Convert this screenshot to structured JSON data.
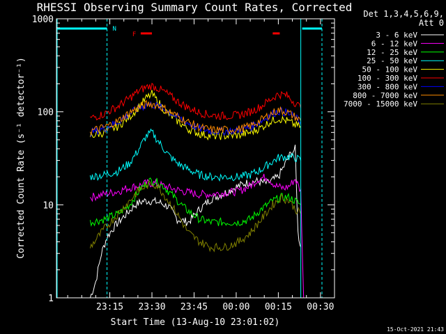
{
  "chart_data": {
    "type": "line",
    "title": "RHESSI Observing Summary Count Rates, Corrected",
    "xlabel": "Start Time (13-Aug-10 23:01:02)",
    "ylabel": "Corrected Count Rate (s⁻¹ detector⁻¹)",
    "y_scale": "log",
    "ylim": [
      1,
      1000
    ],
    "y_ticks": [
      {
        "v": 1,
        "label": "1"
      },
      {
        "v": 10,
        "label": "10"
      },
      {
        "v": 100,
        "label": "100"
      },
      {
        "v": 1000,
        "label": "1000"
      }
    ],
    "xlim_minutes_after_start": [
      -5,
      94
    ],
    "x_ticks": [
      {
        "m": 14,
        "label": "23:15"
      },
      {
        "m": 29,
        "label": "23:30"
      },
      {
        "m": 44,
        "label": "23:45"
      },
      {
        "m": 59,
        "label": "00:00"
      },
      {
        "m": 74,
        "label": "00:15"
      },
      {
        "m": 89,
        "label": "00:30"
      }
    ],
    "legend_header": [
      "Det 1,3,4,5,6,9,",
      "Att 0"
    ],
    "legend_position": "right",
    "series": [
      {
        "name": "3 - 6 keV",
        "color": "#ffffff",
        "x": [
          7,
          9,
          11,
          13,
          15,
          17,
          20,
          23,
          26,
          29,
          32,
          35,
          38,
          42,
          46,
          50,
          54,
          58,
          62,
          66,
          70,
          74,
          76,
          78,
          80,
          81,
          82
        ],
        "values": [
          1,
          1.5,
          3,
          4.5,
          5.5,
          6.5,
          8,
          10,
          11,
          11,
          10.5,
          9.5,
          7,
          6.5,
          9,
          11.5,
          13,
          15,
          17,
          18,
          17,
          20,
          26,
          34,
          40,
          5,
          3.5
        ]
      },
      {
        "name": "6 - 12 keV",
        "color": "#ff00ff",
        "x": [
          7,
          12,
          17,
          20,
          24,
          27,
          30,
          33,
          36,
          40,
          45,
          50,
          55,
          60,
          64,
          67,
          70,
          73,
          76,
          78,
          80,
          82,
          83
        ],
        "values": [
          12,
          13,
          14,
          15,
          16,
          17,
          17,
          16,
          15,
          14,
          13,
          13,
          13.5,
          14,
          16,
          19,
          20,
          16,
          15,
          16,
          19,
          14,
          1
        ]
      },
      {
        "name": "12 - 25 keV",
        "color": "#00ff00",
        "x": [
          7,
          12,
          17,
          21,
          25,
          28,
          30,
          33,
          37,
          41,
          46,
          50,
          55,
          60,
          64,
          68,
          72,
          75,
          78,
          80,
          82
        ],
        "values": [
          6.5,
          7,
          8,
          10,
          15,
          18,
          18,
          16,
          12,
          9,
          7,
          6.5,
          6.5,
          6.5,
          7,
          9,
          11,
          12,
          12,
          11,
          10
        ]
      },
      {
        "name": "25 - 50 keV",
        "color": "#00ffff",
        "x": [
          7,
          12,
          17,
          21,
          24,
          27,
          29,
          32,
          35,
          38,
          42,
          46,
          50,
          55,
          60,
          64,
          68,
          71,
          74,
          77,
          80,
          82
        ],
        "values": [
          20,
          21,
          23,
          28,
          38,
          55,
          60,
          45,
          34,
          28,
          24,
          21,
          20,
          20,
          20,
          21,
          24,
          28,
          32,
          33,
          32,
          30
        ]
      },
      {
        "name": "50 - 100 keV",
        "color": "#ffff00",
        "x": [
          7,
          12,
          17,
          21,
          24,
          27,
          29,
          31,
          34,
          38,
          42,
          46,
          50,
          55,
          60,
          64,
          68,
          71,
          74,
          77,
          80,
          82
        ],
        "values": [
          55,
          60,
          70,
          88,
          110,
          140,
          155,
          130,
          100,
          80,
          65,
          58,
          55,
          55,
          56,
          60,
          68,
          78,
          85,
          80,
          72,
          70
        ]
      },
      {
        "name": "100 - 300 keV",
        "color": "#ff0000",
        "x": [
          7,
          12,
          17,
          21,
          24,
          27,
          29,
          31,
          34,
          38,
          42,
          46,
          50,
          55,
          60,
          64,
          68,
          71,
          74,
          77,
          80,
          82
        ],
        "values": [
          85,
          95,
          115,
          140,
          165,
          185,
          190,
          180,
          160,
          130,
          110,
          98,
          92,
          90,
          92,
          100,
          115,
          135,
          155,
          150,
          125,
          110
        ]
      },
      {
        "name": "300 - 800 keV",
        "color": "#0000ff",
        "x": [
          7,
          12,
          17,
          21,
          24,
          27,
          29,
          31,
          34,
          38,
          42,
          46,
          50,
          55,
          60,
          64,
          68,
          71,
          74,
          77,
          80,
          82
        ],
        "values": [
          60,
          66,
          78,
          95,
          108,
          118,
          120,
          115,
          105,
          88,
          75,
          66,
          62,
          62,
          63,
          68,
          80,
          92,
          102,
          98,
          86,
          78
        ]
      },
      {
        "name": "800 - 7000 keV",
        "color": "#ff8c00",
        "x": [
          7,
          12,
          17,
          21,
          24,
          27,
          29,
          31,
          34,
          38,
          42,
          46,
          50,
          55,
          60,
          64,
          68,
          71,
          74,
          77,
          80,
          82
        ],
        "values": [
          62,
          68,
          80,
          98,
          110,
          120,
          122,
          117,
          106,
          90,
          77,
          68,
          64,
          64,
          65,
          70,
          82,
          94,
          104,
          100,
          88,
          80
        ]
      },
      {
        "name": "7000 - 15000 keV",
        "color": "#808000",
        "x": [
          7,
          12,
          17,
          21,
          24,
          27,
          29,
          31,
          34,
          38,
          42,
          46,
          50,
          55,
          60,
          64,
          68,
          72,
          75,
          78,
          80,
          82
        ],
        "values": [
          3.5,
          5.5,
          8,
          11,
          14,
          16,
          17,
          16,
          12,
          8,
          5,
          4,
          3.5,
          3.5,
          4,
          5,
          7,
          10,
          12,
          11,
          9,
          8
        ]
      }
    ],
    "flags": [
      {
        "label": "N",
        "color": "#00ffff",
        "x_start": -5,
        "x_end": 13,
        "x_dash_start": 13,
        "x_dash_end": 82
      },
      {
        "label": "F",
        "color": "#ff0000",
        "segments": [
          [
            25,
            29
          ],
          [
            72,
            74.5
          ]
        ]
      }
    ],
    "timestamp": "15-Oct-2021 21:43"
  }
}
